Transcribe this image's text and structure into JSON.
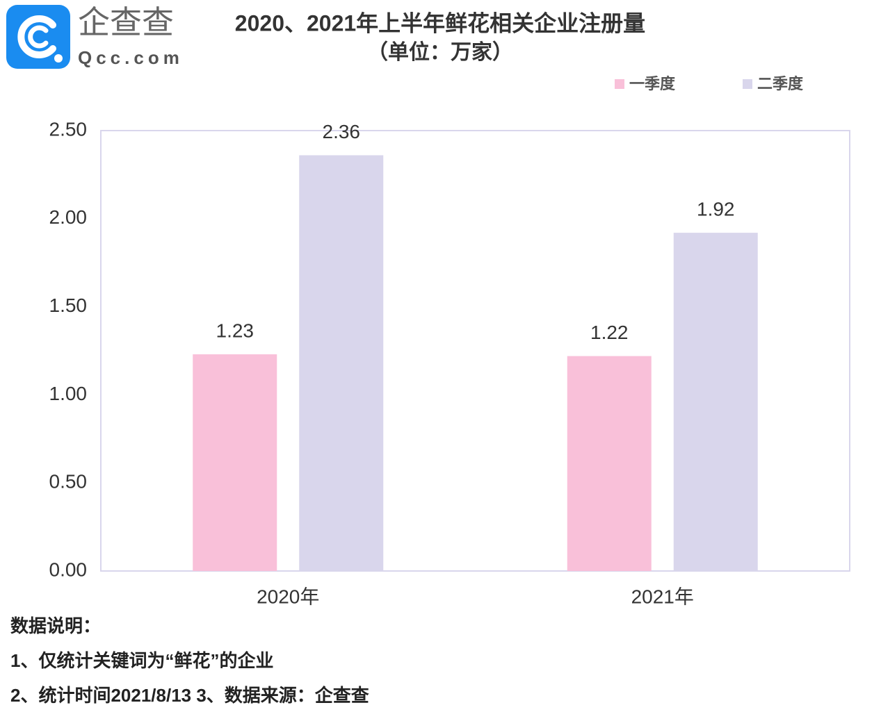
{
  "logo": {
    "name": "企查查",
    "site": "Qcc.com"
  },
  "chart_data": {
    "type": "bar",
    "title": "2020、2021年上半年鲜花相关企业注册量",
    "subtitle": "（单位：万家）",
    "categories": [
      "2020年",
      "2021年"
    ],
    "series": [
      {
        "name": "一季度",
        "color": "#f9c0d9",
        "values": [
          1.23,
          1.22
        ]
      },
      {
        "name": "二季度",
        "color": "#d9d6ec",
        "values": [
          2.36,
          1.92
        ]
      }
    ],
    "ylim": [
      0,
      2.5
    ],
    "yticks": [
      {
        "value": 0,
        "label": "0.00"
      },
      {
        "value": 0.5,
        "label": "0.50"
      },
      {
        "value": 1,
        "label": "1.00"
      },
      {
        "value": 1.5,
        "label": "1.50"
      },
      {
        "value": 2,
        "label": "2.00"
      },
      {
        "value": 2.5,
        "label": "2.50"
      }
    ],
    "grid": false,
    "legend": "top-right"
  },
  "notes": [
    "数据说明：",
    "1、仅统计关键词为“鲜花”的企业",
    "2、统计时间2021/8/13   3、数据来源：企查查"
  ]
}
